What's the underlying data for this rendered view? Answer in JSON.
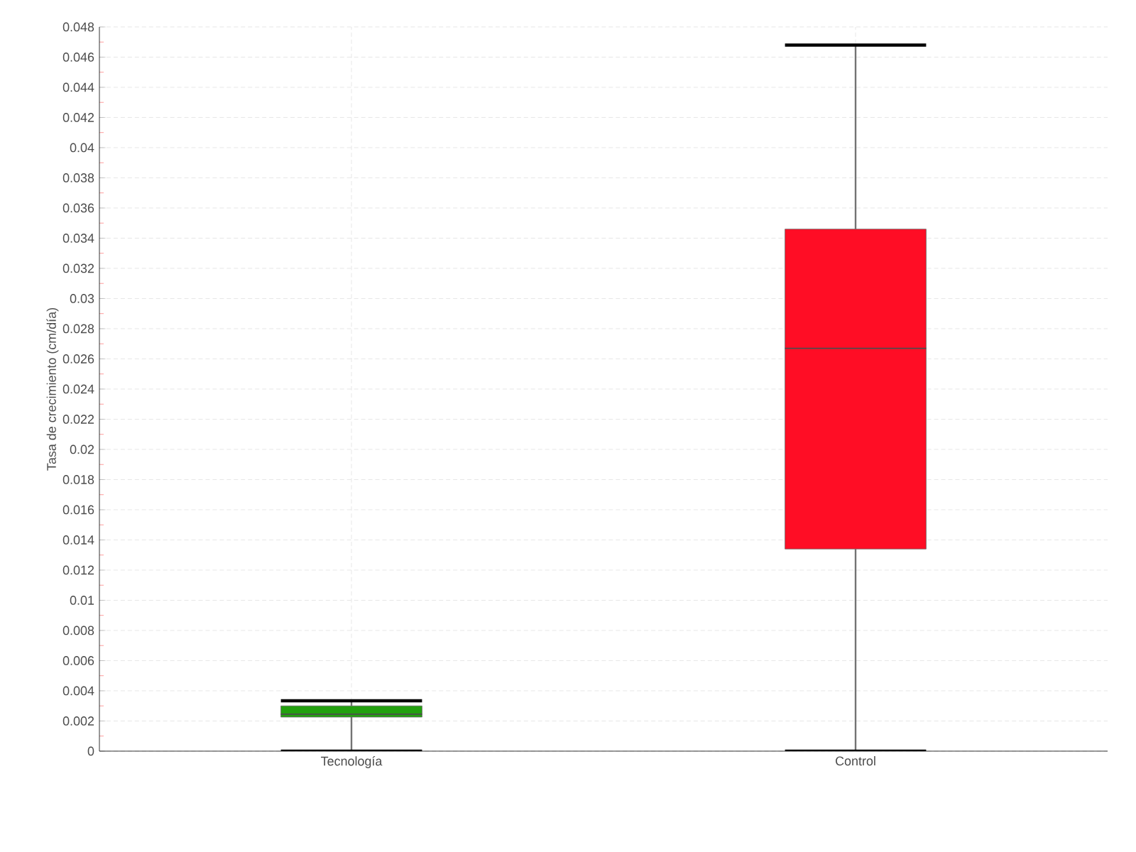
{
  "chart_data": {
    "type": "box",
    "ylabel": "Tasa de crecimiento (cm/día)",
    "categories": [
      "Tecnología",
      "Control"
    ],
    "boxes": [
      {
        "low": 0,
        "q1": 0.00226,
        "median": 0.00245,
        "q3": 0.003,
        "high": 0.00334
      },
      {
        "low": 0,
        "q1": 0.0134,
        "median": 0.0267,
        "q3": 0.0346,
        "high": 0.0468
      }
    ],
    "colors": [
      "#22a00e",
      "#ff0d25"
    ],
    "ylim": [
      0,
      0.048
    ],
    "yticks": [
      0,
      0.002,
      0.004,
      0.006,
      0.008,
      0.01,
      0.012,
      0.014,
      0.016,
      0.018,
      0.02,
      0.022,
      0.024,
      0.026,
      0.028,
      0.03,
      0.032,
      0.034,
      0.036,
      0.038,
      0.04,
      0.042,
      0.044,
      0.046,
      0.048
    ],
    "grid": true
  }
}
